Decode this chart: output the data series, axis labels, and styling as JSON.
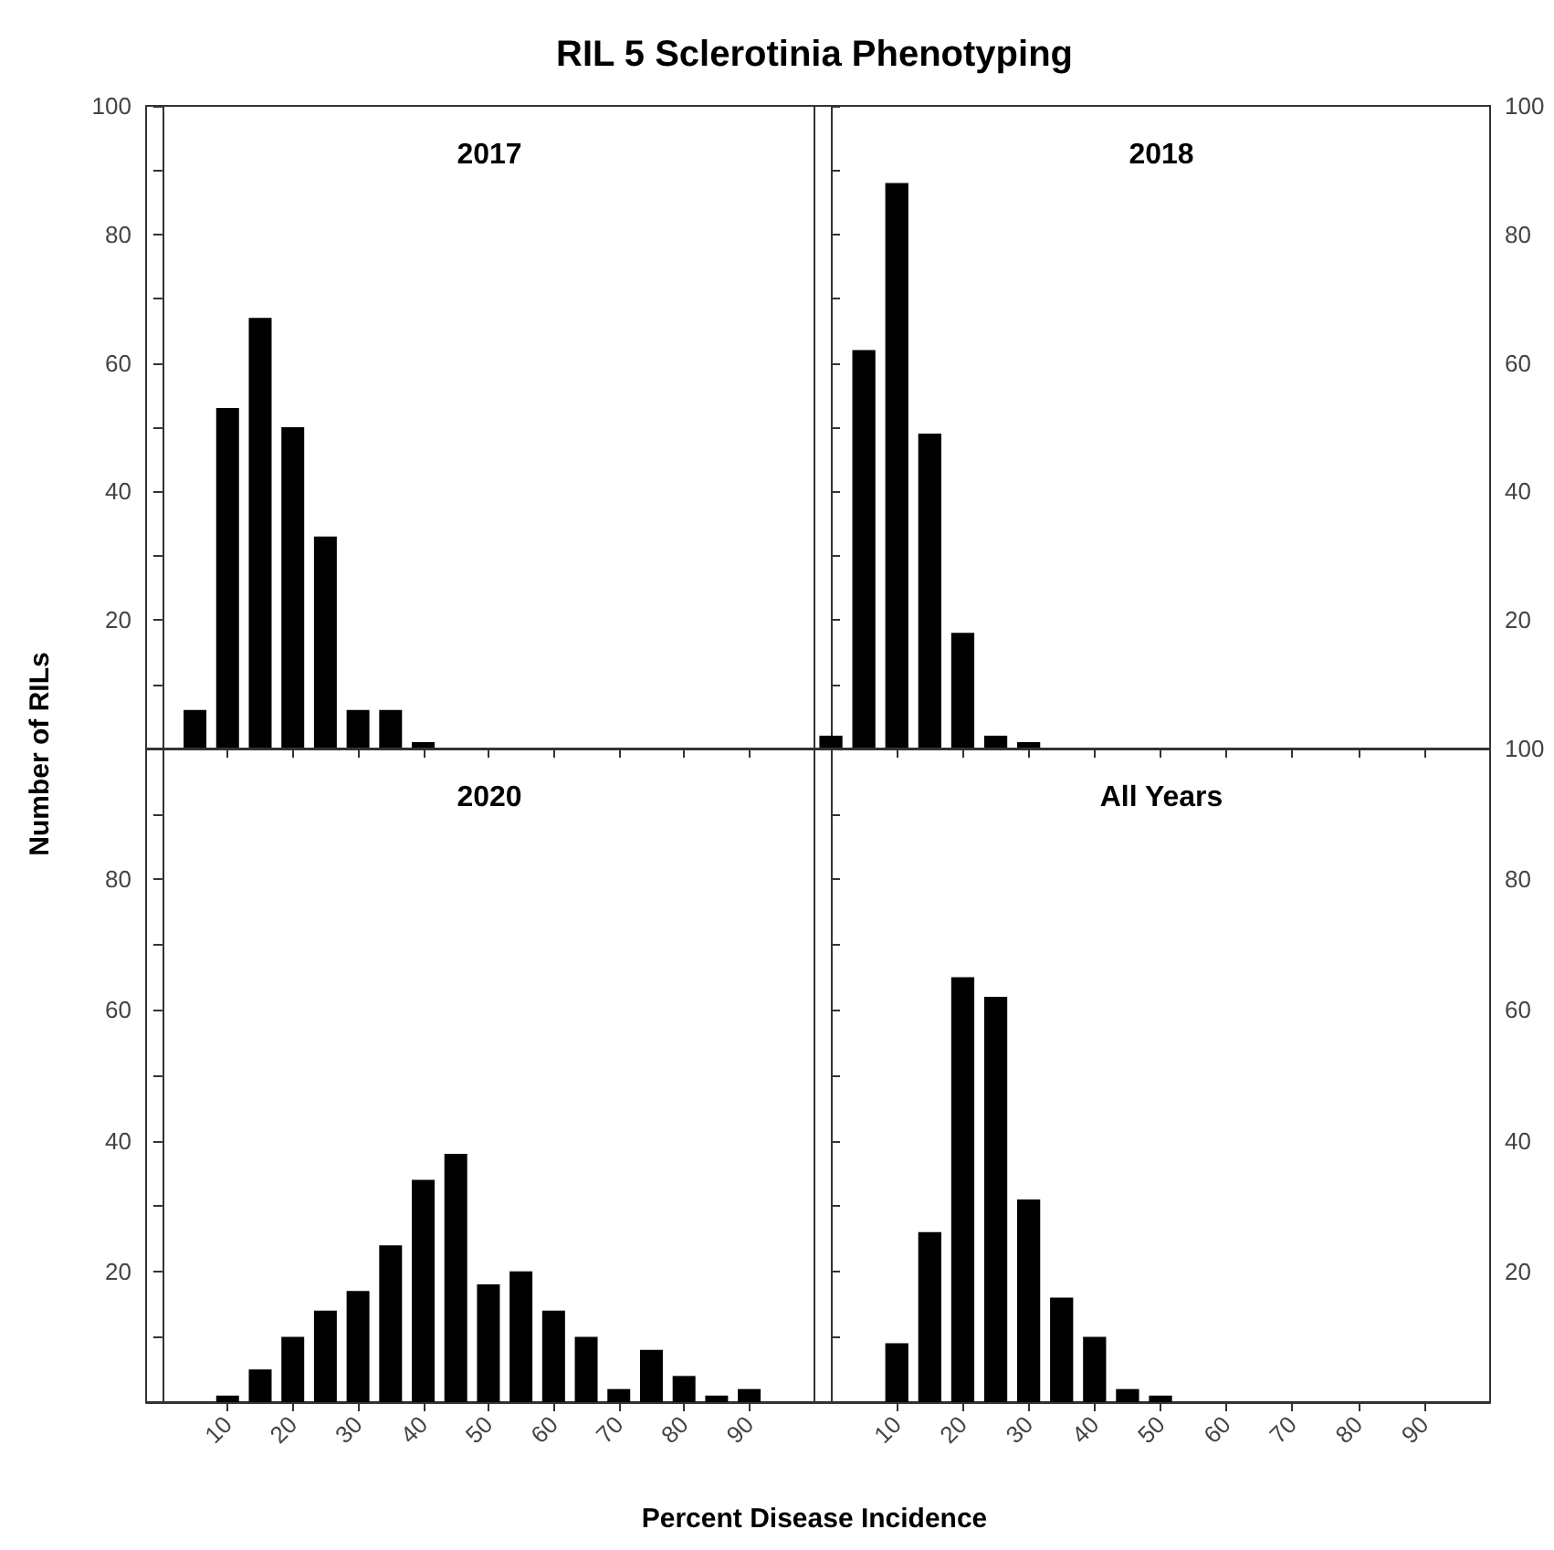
{
  "chart_data": [
    {
      "type": "histogram",
      "title": "2017",
      "annotations": [
        "RIL 5 Sclerotinia Phenotyping"
      ],
      "ylabel": "Number of RILs",
      "color": "#000000",
      "bins": [
        2.5,
        7.5,
        12.5,
        17.5,
        22.5,
        27.5,
        32.5,
        37.5,
        42.5
      ],
      "values": [
        6,
        53,
        67,
        50,
        33,
        6,
        6,
        1
      ],
      "xlim": [
        -2.5,
        100
      ],
      "xticks": [
        10,
        20,
        30,
        40,
        50,
        60,
        70,
        80,
        90
      ],
      "ylim": [
        0,
        100
      ],
      "yticks": [
        {
          "value": 10,
          "label": null
        },
        20,
        {
          "value": 30,
          "label": null
        },
        40,
        {
          "value": 50,
          "label": null
        },
        60,
        {
          "value": 70,
          "label": null
        },
        80,
        {
          "value": 90,
          "label": null
        },
        100
      ],
      "tick_labels": "y"
    },
    {
      "type": "histogram",
      "title": "2018",
      "bins": [
        -2.5,
        2.5,
        7.5,
        12.5,
        17.5,
        22.5,
        27.5,
        32.5
      ],
      "series": [
        {
          "color": "#000000",
          "axis": "y2",
          "values": [
            2,
            62,
            88,
            49,
            18,
            2,
            1
          ]
        }
      ],
      "xlim": [
        -2.5,
        100
      ],
      "xticks": [
        10,
        20,
        30,
        40,
        50,
        60,
        70,
        80,
        90
      ],
      "y2lim": [
        0,
        100
      ],
      "y2ticks": [
        {
          "value": 10,
          "label": null
        },
        20,
        {
          "value": 30,
          "label": null
        },
        40,
        {
          "value": 50,
          "label": null
        },
        60,
        {
          "value": 70,
          "label": null
        },
        80,
        {
          "value": 90,
          "label": null
        },
        100
      ],
      "tick_labels": "y"
    },
    {
      "type": "histogram",
      "title": "2020",
      "xlabel": "Percent Disease Incidence",
      "color": "#000000",
      "bins": [
        7.5,
        12.5,
        17.5,
        22.5,
        27.5,
        32.5,
        37.5,
        42.5,
        47.5,
        52.5,
        57.5,
        62.5,
        67.5,
        72.5,
        77.5,
        82.5,
        87.5,
        92.5
      ],
      "values": [
        1,
        5,
        10,
        14,
        17,
        24,
        34,
        38,
        18,
        20,
        14,
        10,
        2,
        8,
        4,
        1,
        2
      ],
      "xlim": [
        -2.5,
        100
      ],
      "xticks": [
        10,
        20,
        30,
        40,
        50,
        60,
        70,
        80,
        90
      ],
      "ylim": [
        0,
        100
      ],
      "yticks": [
        {
          "value": 10,
          "label": null
        },
        20,
        {
          "value": 30,
          "label": null
        },
        40,
        {
          "value": 50,
          "label": null
        },
        60,
        {
          "value": 70,
          "label": null
        },
        80,
        {
          "value": 90,
          "label": null
        },
        {
          "value": 100,
          "label": null
        }
      ]
    },
    {
      "type": "histogram",
      "title": "All Years",
      "bins": [
        7.5,
        12.5,
        17.5,
        22.5,
        27.5,
        32.5,
        37.5,
        42.5,
        47.5,
        52.5
      ],
      "series": [
        {
          "color": "#000000",
          "axis": "y2",
          "values": [
            9,
            26,
            65,
            62,
            31,
            16,
            10,
            2,
            1
          ]
        }
      ],
      "xlim": [
        -2.5,
        100
      ],
      "xticks": [
        10,
        20,
        30,
        40,
        50,
        60,
        70,
        80,
        90
      ],
      "y2lim": [
        0,
        100
      ],
      "y2ticks": [
        {
          "value": 10,
          "label": null
        },
        20,
        {
          "value": 30,
          "label": null
        },
        40,
        {
          "value": 50,
          "label": null
        },
        60,
        {
          "value": 70,
          "label": null
        },
        80,
        {
          "value": 90,
          "label": null
        },
        100
      ]
    }
  ]
}
